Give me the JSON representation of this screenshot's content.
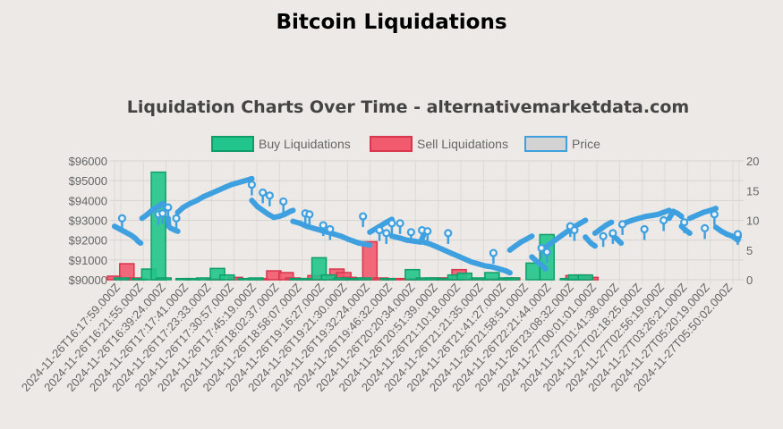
{
  "page": {
    "title": "Bitcoin Liquidations"
  },
  "chart_data": {
    "type": "bar",
    "title": "Liquidation Charts Over Time - alternativemarketdata.com",
    "legend_position": "top",
    "grid": true,
    "legend": [
      {
        "name": "Buy Liquidations",
        "color": "#22c58b",
        "border": "#0f9e6a"
      },
      {
        "name": "Sell Liquidations",
        "color": "#f25a6e",
        "border": "#d8364c"
      },
      {
        "name": "Price",
        "color": "#d3d3d3",
        "border": "#3fa0e0"
      }
    ],
    "x_tick_labels": [
      "2024-11-26T16:17:59.000Z",
      "2024-11-26T16:21:55.000Z",
      "2024-11-26T16:39:24.000Z",
      "2024-11-26T17:17:41.000Z",
      "2024-11-26T17:23:33.000Z",
      "2024-11-26T17:30:57.000Z",
      "2024-11-26T17:45:19.000Z",
      "2024-11-26T18:02:37.000Z",
      "2024-11-26T18:58:07.000Z",
      "2024-11-26T19:16:27.000Z",
      "2024-11-26T19:21:30.000Z",
      "2024-11-26T19:32:24.000Z",
      "2024-11-26T19:46:32.000Z",
      "2024-11-26T20:20:34.000Z",
      "2024-11-26T20:51:39.000Z",
      "2024-11-26T21:10:18.000Z",
      "2024-11-26T21:21:35.000Z",
      "2024-11-26T21:41:27.000Z",
      "2024-11-26T21:58:51.000Z",
      "2024-11-26T22:21:44.000Z",
      "2024-11-26T23:08:32.000Z",
      "2024-11-27T00:01:01.000Z",
      "2024-11-27T01:41:38.000Z",
      "2024-11-27T02:18:25.000Z",
      "2024-11-27T02:56:19.000Z",
      "2024-11-27T03:26:21.000Z",
      "2024-11-27T05:20:19.000Z",
      "2024-11-27T05:50:02.000Z"
    ],
    "y_left": {
      "ticks": [
        "$90000",
        "$91000",
        "$92000",
        "$93000",
        "$94000",
        "$95000",
        "$96000"
      ],
      "range": [
        90000,
        96000
      ]
    },
    "y_right": {
      "ticks": [
        "0",
        "5",
        "10",
        "15",
        "20"
      ],
      "range": [
        0,
        20
      ]
    },
    "buy_bars": [
      {
        "x": 0.5,
        "v": 0.3
      },
      {
        "x": 1.8,
        "v": 0.2
      },
      {
        "x": 2.5,
        "v": 1.8
      },
      {
        "x": 3.2,
        "v": 18.1
      },
      {
        "x": 3.6,
        "v": 0.3
      },
      {
        "x": 5,
        "v": 0.2
      },
      {
        "x": 5.7,
        "v": 0.2
      },
      {
        "x": 6.5,
        "v": 0.3
      },
      {
        "x": 7.5,
        "v": 1.9
      },
      {
        "x": 8.2,
        "v": 0.8
      },
      {
        "x": 9.5,
        "v": 0.2
      },
      {
        "x": 10.3,
        "v": 0.3
      },
      {
        "x": 13.3,
        "v": 0.2
      },
      {
        "x": 13.9,
        "v": 0.2
      },
      {
        "x": 14.9,
        "v": 3.7
      },
      {
        "x": 15.6,
        "v": 0.8
      },
      {
        "x": 16.5,
        "v": 0.3
      },
      {
        "x": 17.4,
        "v": 0.2
      },
      {
        "x": 18.2,
        "v": 0.3
      },
      {
        "x": 19.9,
        "v": 0.2
      },
      {
        "x": 21.7,
        "v": 1.7
      },
      {
        "x": 22.5,
        "v": 0.3
      },
      {
        "x": 23.2,
        "v": 0.3
      },
      {
        "x": 24,
        "v": 0.2
      },
      {
        "x": 24.8,
        "v": 0.8
      },
      {
        "x": 25.5,
        "v": 1.1
      },
      {
        "x": 26.6,
        "v": 0.3
      },
      {
        "x": 27.5,
        "v": 1.2
      },
      {
        "x": 28.5,
        "v": 0.3
      },
      {
        "x": 28.9,
        "v": 0.3
      },
      {
        "x": 30.5,
        "v": 2.8
      },
      {
        "x": 31.5,
        "v": 7.6
      },
      {
        "x": 33,
        "v": 0.2
      },
      {
        "x": 33.6,
        "v": 0.8
      },
      {
        "x": 34.3,
        "v": 0.8
      }
    ],
    "sell_bars": [
      {
        "x": 0,
        "v": 0.6
      },
      {
        "x": 0.9,
        "v": 2.7
      },
      {
        "x": 1.5,
        "v": 0.3
      },
      {
        "x": 7.2,
        "v": 0.2
      },
      {
        "x": 8.8,
        "v": 0.4
      },
      {
        "x": 10.7,
        "v": 0.2
      },
      {
        "x": 11.6,
        "v": 1.5
      },
      {
        "x": 12.5,
        "v": 1.2
      },
      {
        "x": 13,
        "v": 0.3
      },
      {
        "x": 14.3,
        "v": 0.2
      },
      {
        "x": 14.6,
        "v": 0.7
      },
      {
        "x": 15.3,
        "v": 0.6
      },
      {
        "x": 16.2,
        "v": 1.8
      },
      {
        "x": 16.7,
        "v": 1.2
      },
      {
        "x": 17.1,
        "v": 0.4
      },
      {
        "x": 17.9,
        "v": 0.3
      },
      {
        "x": 18.6,
        "v": 6.4
      },
      {
        "x": 19.4,
        "v": 0.3
      },
      {
        "x": 20.3,
        "v": 0.2
      },
      {
        "x": 21.3,
        "v": 0.2
      },
      {
        "x": 22.1,
        "v": 0.2
      },
      {
        "x": 23.6,
        "v": 0.3
      },
      {
        "x": 24.4,
        "v": 0.3
      },
      {
        "x": 25.1,
        "v": 1.7
      },
      {
        "x": 26.3,
        "v": 0.2
      },
      {
        "x": 27.2,
        "v": 0.2
      },
      {
        "x": 28.1,
        "v": 0.2
      },
      {
        "x": 29,
        "v": 0.3
      },
      {
        "x": 33.4,
        "v": 0.7
      },
      {
        "x": 34.1,
        "v": 0.8
      },
      {
        "x": 34.7,
        "v": 0.4
      }
    ],
    "price_segments": [
      [
        [
          0,
          92700
        ],
        [
          0.4,
          92550
        ],
        [
          0.8,
          92400
        ],
        [
          1.2,
          92250
        ],
        [
          1.5,
          92100
        ],
        [
          1.7,
          91950
        ],
        [
          1.9,
          91850
        ]
      ],
      [
        [
          2,
          93100
        ],
        [
          2.4,
          93300
        ],
        [
          2.8,
          93550
        ],
        [
          3.2,
          93700
        ],
        [
          3.5,
          93850
        ],
        [
          3.8,
          93600
        ]
      ],
      [
        [
          3.9,
          93100
        ],
        [
          3.95,
          92700
        ],
        [
          4.1,
          92600
        ],
        [
          4.4,
          92500
        ],
        [
          4.6,
          92450
        ]
      ],
      [
        [
          4.6,
          93400
        ],
        [
          5,
          93650
        ],
        [
          5.5,
          93850
        ],
        [
          6,
          94000
        ],
        [
          6.5,
          94200
        ],
        [
          7,
          94350
        ],
        [
          7.5,
          94500
        ],
        [
          8,
          94650
        ],
        [
          8.5,
          94800
        ],
        [
          9,
          94900
        ],
        [
          9.5,
          95000
        ],
        [
          10,
          95100
        ]
      ],
      [
        [
          10,
          94000
        ],
        [
          10.4,
          93700
        ],
        [
          10.8,
          93500
        ],
        [
          11.2,
          93300
        ],
        [
          11.6,
          93150
        ],
        [
          12,
          93200
        ],
        [
          12.4,
          93300
        ],
        [
          12.8,
          93450
        ],
        [
          13,
          93500
        ]
      ],
      [
        [
          13,
          92950
        ],
        [
          13.5,
          92850
        ],
        [
          14,
          92700
        ],
        [
          14.5,
          92600
        ],
        [
          15,
          92500
        ],
        [
          15.5,
          92400
        ],
        [
          16,
          92300
        ],
        [
          16.5,
          92200
        ],
        [
          17,
          92050
        ],
        [
          17.4,
          91950
        ],
        [
          17.8,
          91850
        ],
        [
          18.2,
          91800
        ],
        [
          18.6,
          91750
        ]
      ],
      [
        [
          18.6,
          92400
        ],
        [
          19.2,
          92650
        ],
        [
          19.8,
          92900
        ],
        [
          20.2,
          93050
        ]
      ],
      [
        [
          20.2,
          92200
        ],
        [
          20.8,
          92100
        ],
        [
          21.3,
          92000
        ],
        [
          21.8,
          91950
        ],
        [
          22.3,
          91900
        ],
        [
          22.5,
          92250
        ]
      ],
      [
        [
          22.5,
          91900
        ],
        [
          23,
          91800
        ],
        [
          23.5,
          91650
        ],
        [
          24,
          91500
        ],
        [
          24.5,
          91350
        ],
        [
          25,
          91200
        ],
        [
          25.5,
          91050
        ],
        [
          26,
          90900
        ],
        [
          26.5,
          90800
        ],
        [
          27,
          90700
        ],
        [
          27.5,
          90650
        ],
        [
          28,
          90550
        ],
        [
          28.5,
          90450
        ],
        [
          28.8,
          90350
        ]
      ],
      [
        [
          28.8,
          91500
        ],
        [
          29.2,
          91700
        ],
        [
          29.6,
          91900
        ],
        [
          30,
          92050
        ],
        [
          30.4,
          92200
        ]
      ],
      [
        [
          30.4,
          91150
        ],
        [
          30.8,
          90900
        ],
        [
          31.2,
          90700
        ],
        [
          31.4,
          90550
        ]
      ],
      [
        [
          31.4,
          91650
        ],
        [
          32,
          91950
        ],
        [
          32.6,
          92250
        ],
        [
          33.2,
          92550
        ],
        [
          33.8,
          92800
        ],
        [
          34.3,
          93000
        ]
      ],
      [
        [
          34.3,
          92150
        ],
        [
          34.7,
          91850
        ],
        [
          35,
          91700
        ]
      ],
      [
        [
          35,
          92350
        ],
        [
          35.4,
          92550
        ],
        [
          35.8,
          92750
        ],
        [
          36.2,
          92900
        ]
      ],
      [
        [
          36.2,
          92300
        ],
        [
          36.6,
          92050
        ],
        [
          36.9,
          91850
        ]
      ],
      [
        [
          36.9,
          92750
        ],
        [
          37.3,
          92900
        ],
        [
          37.7,
          93000
        ],
        [
          38.2,
          93100
        ],
        [
          38.7,
          93200
        ],
        [
          39.2,
          93250
        ],
        [
          39.6,
          93300
        ],
        [
          40,
          93400
        ],
        [
          40.4,
          93500
        ]
      ],
      [
        [
          40.4,
          93100
        ],
        [
          40.7,
          93450
        ],
        [
          41,
          93350
        ],
        [
          41.3,
          93200
        ]
      ],
      [
        [
          41.3,
          92700
        ],
        [
          41.6,
          92500
        ],
        [
          41.9,
          92350
        ]
      ],
      [
        [
          41.9,
          93100
        ],
        [
          42.4,
          93250
        ],
        [
          42.9,
          93400
        ],
        [
          43.4,
          93500
        ],
        [
          43.8,
          93600
        ]
      ],
      [
        [
          43.8,
          92650
        ],
        [
          44.2,
          92450
        ],
        [
          44.6,
          92300
        ],
        [
          45,
          92200
        ],
        [
          45.2,
          92100
        ],
        [
          45.4,
          92000
        ],
        [
          45.5,
          92200
        ]
      ]
    ],
    "price_spikes": [
      [
        0.55,
        93100
      ],
      [
        3.2,
        93300
      ],
      [
        3.5,
        93350
      ],
      [
        3.9,
        93650
      ],
      [
        4.5,
        93100
      ],
      [
        10,
        94800
      ],
      [
        10.8,
        94400
      ],
      [
        11.3,
        94250
      ],
      [
        12.3,
        93950
      ],
      [
        13.9,
        93350
      ],
      [
        14.2,
        93300
      ],
      [
        15.2,
        92750
      ],
      [
        15.7,
        92550
      ],
      [
        18.1,
        93200
      ],
      [
        19.3,
        92500
      ],
      [
        19.8,
        92350
      ],
      [
        20.2,
        92850
      ],
      [
        20.8,
        92850
      ],
      [
        21.6,
        92400
      ],
      [
        22.4,
        92500
      ],
      [
        22.8,
        92450
      ],
      [
        24.3,
        92350
      ],
      [
        27.6,
        91350
      ],
      [
        31.1,
        91600
      ],
      [
        31.5,
        91400
      ],
      [
        33.2,
        92700
      ],
      [
        33.5,
        92500
      ],
      [
        35.6,
        92200
      ],
      [
        36.3,
        92350
      ],
      [
        37,
        92800
      ],
      [
        38.6,
        92550
      ],
      [
        40,
        93000
      ],
      [
        41.5,
        92900
      ],
      [
        43,
        92600
      ],
      [
        43.7,
        93300
      ],
      [
        45.4,
        92300
      ]
    ],
    "x_range": [
      0,
      45.5
    ]
  }
}
